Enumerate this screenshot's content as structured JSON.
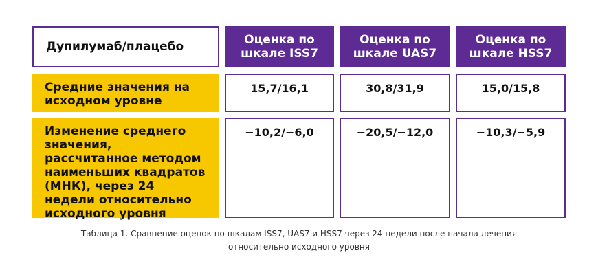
{
  "table": {
    "corner_label": "Дупилумаб/плацебо",
    "columns": [
      "Оценка по шкале ISS7",
      "Оценка по шкале UAS7",
      "Оценка по шкале HSS7"
    ],
    "rows": [
      {
        "label": "Средние значения на исходном уровне",
        "values": [
          "15,7/16,1",
          "30,8/31,9",
          "15,0/15,8"
        ]
      },
      {
        "label": "Изменение среднего значения, рассчитанное методом наименьших квадратов (МНК), через 24 недели относительно исходного уровня",
        "values": [
          "−10,2/−6,0",
          "−20,5/−12,0",
          "−10,3/−5,9"
        ]
      }
    ]
  },
  "caption": {
    "line1": "Таблица 1. Сравнение оценок по шкалам ISS7, UAS7 и HSS7 через 24 недели после начала лечения",
    "line2": "относительно исходного уровня"
  },
  "colors": {
    "purple": "#5e2a94",
    "yellow": "#f7c800"
  }
}
